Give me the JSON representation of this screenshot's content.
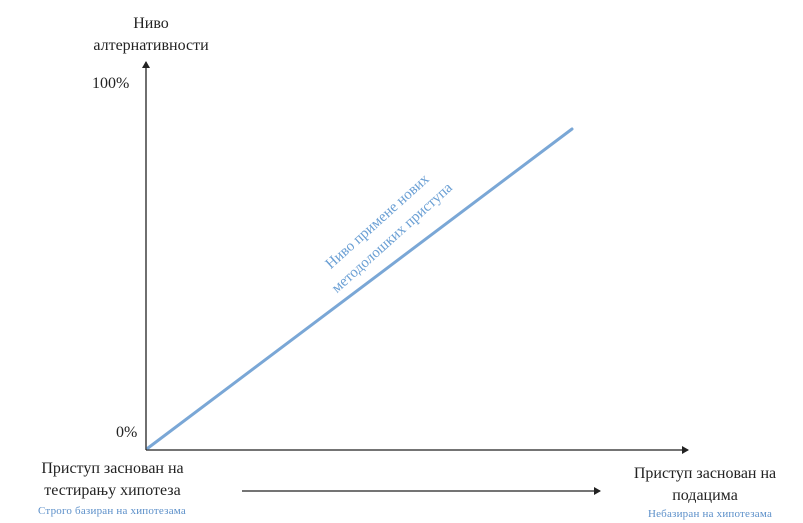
{
  "y_axis": {
    "title_line1": "Ниво",
    "title_line2": "алтернативности",
    "top_tick": "100%",
    "bottom_tick": "0%"
  },
  "x_axis": {
    "left_label_line1": "Приступ заснован на",
    "left_label_line2": "тестирању хипотеза",
    "left_sublabel": "Строго базиран на хипотезама",
    "right_label_line1": "Приступ заснован на",
    "right_label_line2": "подацима",
    "right_sublabel": "Небазиран на хипотезама"
  },
  "trend_line": {
    "label_line1": "Ниво примене нових",
    "label_line2": "методолошких приступа"
  },
  "colors": {
    "axis": "#222222",
    "trend_line": "#7aa7d6",
    "trend_label": "#6a9fd4",
    "sublabel": "#5b8fc9"
  }
}
